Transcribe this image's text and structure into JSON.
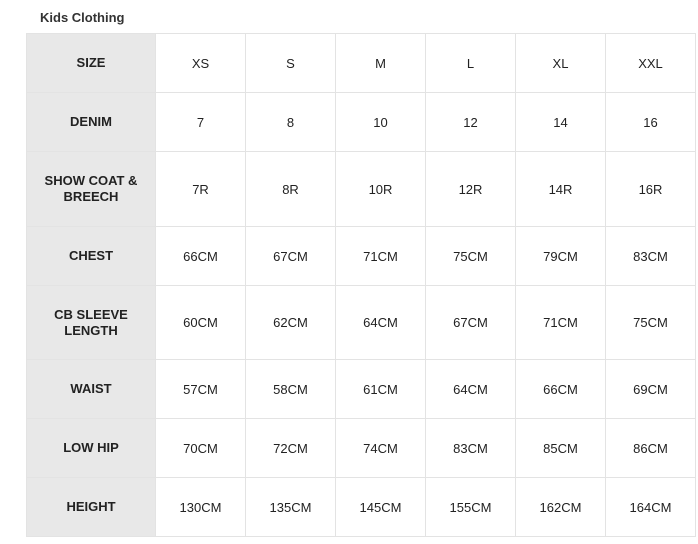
{
  "title": "Kids Clothing",
  "rows": [
    {
      "label": "SIZE",
      "values": [
        "XS",
        "S",
        "M",
        "L",
        "XL",
        "XXL"
      ]
    },
    {
      "label": "DENIM",
      "values": [
        "7",
        "8",
        "10",
        "12",
        "14",
        "16"
      ]
    },
    {
      "label": "SHOW COAT & BREECH",
      "values": [
        "7R",
        "8R",
        "10R",
        "12R",
        "14R",
        "16R"
      ]
    },
    {
      "label": "CHEST",
      "values": [
        "66CM",
        "67CM",
        "71CM",
        "75CM",
        "79CM",
        "83CM"
      ]
    },
    {
      "label": "CB SLEEVE LENGTH",
      "values": [
        "60CM",
        "62CM",
        "64CM",
        "67CM",
        "71CM",
        "75CM"
      ]
    },
    {
      "label": "WAIST",
      "values": [
        "57CM",
        "58CM",
        "61CM",
        "64CM",
        "66CM",
        "69CM"
      ]
    },
    {
      "label": "LOW HIP",
      "values": [
        "70CM",
        "72CM",
        "74CM",
        "83CM",
        "85CM",
        "86CM"
      ]
    },
    {
      "label": "HEIGHT",
      "values": [
        "130CM",
        "135CM",
        "145CM",
        "155CM",
        "162CM",
        "164CM"
      ]
    }
  ]
}
